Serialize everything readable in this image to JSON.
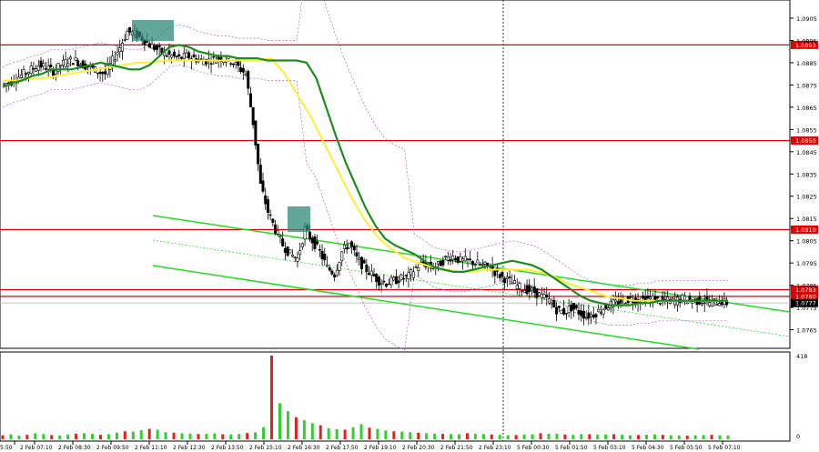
{
  "chart_data": {
    "type": "candlestick",
    "instrument_timeframe": "",
    "price_axis": {
      "min": 1.076,
      "max": 1.091,
      "ticks": [
        "1.0905",
        "1.0895",
        "1.0885",
        "1.0875",
        "1.0865",
        "1.0855",
        "1.0845",
        "1.0835",
        "1.0825",
        "1.0815",
        "1.0805",
        "1.0795",
        "1.0785",
        "1.0775",
        "1.0765"
      ]
    },
    "time_axis": {
      "ticks": [
        "5:50",
        "2 Feb 07:10",
        "2 Feb 08:30",
        "2 Feb 09:50",
        "2 Feb 11:10",
        "2 Feb 12:30",
        "2 Feb 13:50",
        "2 Feb 15:10",
        "2 Feb 16:30",
        "2 Feb 17:50",
        "2 Feb 19:10",
        "2 Feb 20:30",
        "2 Feb 21:50",
        "2 Feb 23:10",
        "5 Feb 00:30",
        "5 Feb 01:50",
        "5 Feb 03:10",
        "5 Feb 04:30",
        "5 Feb 05:50",
        "5 Feb 07:10"
      ]
    },
    "volume_axis": {
      "max": 418,
      "ticks": [
        "418",
        "0"
      ]
    },
    "horizontal_levels": [
      {
        "price": 1.0893,
        "label": "1.0893",
        "color": "#e00000"
      },
      {
        "price": 1.085,
        "label": "1.0850",
        "color": "#e00000"
      },
      {
        "price": 1.081,
        "label": "1.0810",
        "color": "#e00000"
      },
      {
        "price": 1.0783,
        "label": "1.0783",
        "color": "#e00000"
      },
      {
        "price": 1.078,
        "label": "1.0780",
        "color": "#e00000"
      }
    ],
    "current_price": {
      "price": 1.0777,
      "label": "1.0777"
    },
    "close_path": [
      1.0875,
      1.0876,
      1.0878,
      1.088,
      1.0882,
      1.0884,
      1.0883,
      1.0881,
      1.0884,
      1.0886,
      1.0886,
      1.0884,
      1.0883,
      1.0881,
      1.088,
      1.0886,
      1.0892,
      1.0899,
      1.0898,
      1.0896,
      1.0893,
      1.0891,
      1.0889,
      1.0888,
      1.0887,
      1.0888,
      1.0887,
      1.0886,
      1.0886,
      1.0887,
      1.0887,
      1.0886,
      1.0883,
      1.088,
      1.0858,
      1.083,
      1.0818,
      1.081,
      1.0803,
      1.0799,
      1.0797,
      1.081,
      1.0805,
      1.08,
      1.0793,
      1.079,
      1.08,
      1.0804,
      1.0797,
      1.0793,
      1.079,
      1.0787,
      1.0786,
      1.0787,
      1.0788,
      1.0789,
      1.0793,
      1.0795,
      1.0793,
      1.0794,
      1.0797,
      1.0798,
      1.0796,
      1.0796,
      1.0795,
      1.0794,
      1.0793,
      1.079,
      1.0788,
      1.0786,
      1.0784,
      1.0783,
      1.0782,
      1.078,
      1.0778,
      1.0774,
      1.0773,
      1.0775,
      1.0773,
      1.0771,
      1.0772,
      1.0774,
      1.0776,
      1.0777,
      1.0778,
      1.0779,
      1.0778,
      1.0779,
      1.0779,
      1.0778,
      1.0778,
      1.0778,
      1.0779,
      1.0778,
      1.0778,
      1.0778,
      1.0777,
      1.0778,
      1.0777
    ],
    "ma_fast_path": [
      1.0874,
      1.0876,
      1.0877,
      1.0879,
      1.088,
      1.0882,
      1.0882,
      1.0882,
      1.0883,
      1.0884,
      1.0885,
      1.0884,
      1.0883,
      1.0882,
      1.0882,
      1.0884,
      1.0888,
      1.0892,
      1.0893,
      1.0892,
      1.089,
      1.0889,
      1.0888,
      1.0888,
      1.0887,
      1.0887,
      1.0887,
      1.0886,
      1.0886,
      1.0886,
      1.0886,
      1.0885,
      1.0878,
      1.0865,
      1.0852,
      1.084,
      1.083,
      1.082,
      1.0812,
      1.0806,
      1.0803,
      1.0801,
      1.0799,
      1.0796,
      1.0793,
      1.0792,
      1.0791,
      1.0791,
      1.0792,
      1.0793,
      1.0794,
      1.0795,
      1.0796,
      1.0795,
      1.0794,
      1.0792,
      1.0789,
      1.0786,
      1.0783,
      1.078,
      1.0778,
      1.0777,
      1.0776,
      1.0776,
      1.0776,
      1.0777,
      1.0777,
      1.0778,
      1.0778,
      1.0778,
      1.0778,
      1.0778,
      1.0778,
      1.0778,
      1.0778
    ],
    "ma_slow_path": [
      1.0877,
      1.0877,
      1.0878,
      1.0878,
      1.0879,
      1.088,
      1.0881,
      1.0882,
      1.0883,
      1.0884,
      1.0885,
      1.0885,
      1.0886,
      1.0886,
      1.0886,
      1.0886,
      1.0886,
      1.0886,
      1.0886,
      1.0886,
      1.0887,
      1.088,
      1.087,
      1.086,
      1.0848,
      1.0836,
      1.0824,
      1.0814,
      1.0806,
      1.0801,
      1.0797,
      1.0795,
      1.0793,
      1.0792,
      1.0791,
      1.0791,
      1.0792,
      1.0792,
      1.0792,
      1.0792,
      1.0791,
      1.0789,
      1.0786,
      1.0784,
      1.0782,
      1.078,
      1.0779,
      1.0778,
      1.0778,
      1.0778,
      1.0778,
      1.0778,
      1.0778,
      1.0778,
      1.0778
    ],
    "volume_path": [
      20,
      25,
      18,
      22,
      30,
      26,
      21,
      19,
      24,
      28,
      30,
      27,
      22,
      25,
      33,
      40,
      38,
      45,
      52,
      48,
      35,
      33,
      30,
      28,
      26,
      27,
      29,
      25,
      24,
      26,
      31,
      35,
      60,
      418,
      180,
      140,
      110,
      95,
      80,
      70,
      55,
      50,
      48,
      60,
      75,
      58,
      52,
      44,
      40,
      38,
      35,
      33,
      30,
      28,
      27,
      26,
      25,
      30,
      28,
      26,
      24,
      22,
      20,
      21,
      23,
      25,
      30,
      28,
      27,
      24,
      22,
      26,
      25,
      23,
      24,
      25,
      22,
      20,
      21,
      23,
      24,
      22,
      20,
      19,
      18,
      20,
      21,
      22,
      20,
      19
    ]
  }
}
